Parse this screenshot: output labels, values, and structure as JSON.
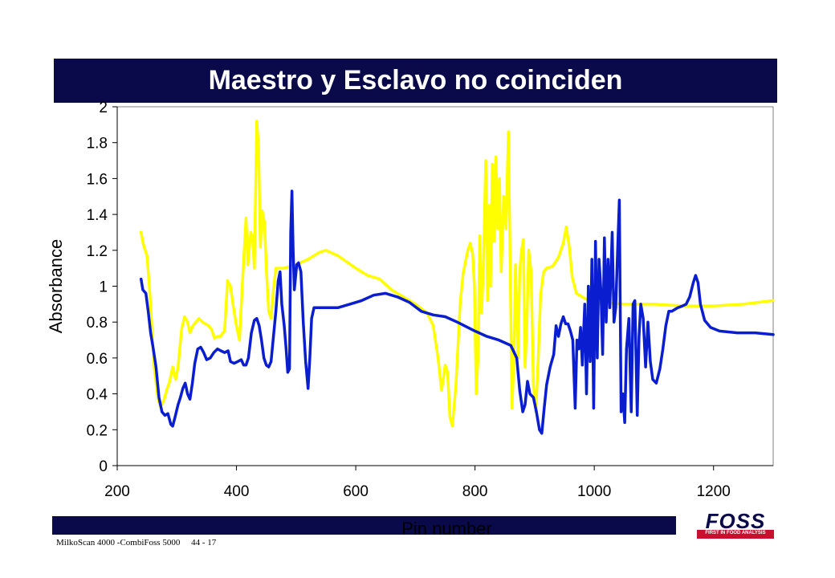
{
  "slide": {
    "title": "Maestro y Esclavo no coinciden",
    "footer": "MilkoScan 4000 -CombiFoss 5000     44 - 17"
  },
  "logo": {
    "word": "FOSS",
    "tagline": "FIRST IN FOOD ANALYSIS",
    "color": "#0a0a4a",
    "strip_color": "#c8102e"
  },
  "chart_data": {
    "type": "line",
    "xlabel": "Pin number",
    "ylabel": "Absorbance",
    "xlim": [
      200,
      1300
    ],
    "ylim": [
      0,
      2
    ],
    "xticks": [
      200,
      400,
      600,
      800,
      1000,
      1200
    ],
    "yticks": [
      0,
      0.2,
      0.4,
      0.6,
      0.8,
      1,
      1.2,
      1.4,
      1.6,
      1.8,
      2
    ],
    "grid": false,
    "legend": "none",
    "series": [
      {
        "color": "#ffff00",
        "points": [
          [
            240,
            1.3
          ],
          [
            244,
            1.23
          ],
          [
            250,
            1.17
          ],
          [
            255,
            0.95
          ],
          [
            262,
            0.55
          ],
          [
            268,
            0.38
          ],
          [
            272,
            0.33
          ],
          [
            278,
            0.36
          ],
          [
            283,
            0.42
          ],
          [
            288,
            0.47
          ],
          [
            293,
            0.55
          ],
          [
            298,
            0.48
          ],
          [
            302,
            0.55
          ],
          [
            308,
            0.76
          ],
          [
            313,
            0.83
          ],
          [
            318,
            0.8
          ],
          [
            322,
            0.74
          ],
          [
            327,
            0.78
          ],
          [
            332,
            0.8
          ],
          [
            337,
            0.82
          ],
          [
            343,
            0.8
          ],
          [
            348,
            0.79
          ],
          [
            353,
            0.78
          ],
          [
            358,
            0.76
          ],
          [
            363,
            0.71
          ],
          [
            368,
            0.72
          ],
          [
            373,
            0.72
          ],
          [
            377,
            0.74
          ],
          [
            380,
            0.75
          ],
          [
            385,
            1.03
          ],
          [
            390,
            1.0
          ],
          [
            395,
            0.88
          ],
          [
            400,
            0.78
          ],
          [
            405,
            0.7
          ],
          [
            410,
            1.02
          ],
          [
            416,
            1.38
          ],
          [
            419,
            1.12
          ],
          [
            424,
            1.3
          ],
          [
            427,
            1.27
          ],
          [
            430,
            1.1
          ],
          [
            434,
            1.92
          ],
          [
            437,
            1.78
          ],
          [
            440,
            1.22
          ],
          [
            443,
            1.42
          ],
          [
            447,
            1.35
          ],
          [
            450,
            1.1
          ],
          [
            454,
            0.86
          ],
          [
            458,
            0.82
          ],
          [
            462,
            0.98
          ],
          [
            466,
            1.1
          ],
          [
            480,
            1.1
          ],
          [
            500,
            1.12
          ],
          [
            520,
            1.15
          ],
          [
            540,
            1.19
          ],
          [
            550,
            1.2
          ],
          [
            570,
            1.17
          ],
          [
            600,
            1.1
          ],
          [
            620,
            1.06
          ],
          [
            640,
            1.04
          ],
          [
            660,
            0.98
          ],
          [
            680,
            0.94
          ],
          [
            700,
            0.9
          ],
          [
            720,
            0.85
          ],
          [
            730,
            0.78
          ],
          [
            738,
            0.6
          ],
          [
            744,
            0.42
          ],
          [
            750,
            0.56
          ],
          [
            754,
            0.52
          ],
          [
            758,
            0.27
          ],
          [
            762,
            0.22
          ],
          [
            768,
            0.45
          ],
          [
            775,
            0.9
          ],
          [
            780,
            1.07
          ],
          [
            788,
            1.2
          ],
          [
            792,
            1.24
          ],
          [
            796,
            1.18
          ],
          [
            799,
            1.0
          ],
          [
            802,
            0.4
          ],
          [
            805,
            0.6
          ],
          [
            808,
            1.28
          ],
          [
            811,
            0.85
          ],
          [
            814,
            1.1
          ],
          [
            818,
            1.7
          ],
          [
            821,
            0.92
          ],
          [
            824,
            1.45
          ],
          [
            826,
            1.0
          ],
          [
            829,
            1.68
          ],
          [
            832,
            1.25
          ],
          [
            835,
            1.72
          ],
          [
            838,
            1.32
          ],
          [
            841,
            1.6
          ],
          [
            844,
            1.08
          ],
          [
            848,
            1.5
          ],
          [
            852,
            1.32
          ],
          [
            856,
            1.86
          ],
          [
            859,
            1.1
          ],
          [
            862,
            0.32
          ],
          [
            865,
            0.58
          ],
          [
            868,
            1.12
          ],
          [
            872,
            0.6
          ],
          [
            875,
            1.08
          ],
          [
            878,
            1.2
          ],
          [
            881,
            1.26
          ],
          [
            884,
            0.55
          ],
          [
            887,
            0.8
          ],
          [
            890,
            1.2
          ],
          [
            894,
            1.08
          ],
          [
            898,
            0.45
          ],
          [
            902,
            0.3
          ],
          [
            906,
            0.6
          ],
          [
            910,
            0.95
          ],
          [
            915,
            1.08
          ],
          [
            920,
            1.1
          ],
          [
            930,
            1.11
          ],
          [
            940,
            1.16
          ],
          [
            948,
            1.24
          ],
          [
            953,
            1.33
          ],
          [
            958,
            1.22
          ],
          [
            963,
            1.05
          ],
          [
            970,
            0.96
          ],
          [
            985,
            0.93
          ],
          [
            1000,
            0.91
          ],
          [
            1050,
            0.9
          ],
          [
            1100,
            0.9
          ],
          [
            1150,
            0.89
          ],
          [
            1200,
            0.89
          ],
          [
            1250,
            0.9
          ],
          [
            1300,
            0.92
          ]
        ]
      },
      {
        "color": "#0a1ed0",
        "points": [
          [
            240,
            1.04
          ],
          [
            243,
            0.98
          ],
          [
            248,
            0.96
          ],
          [
            252,
            0.86
          ],
          [
            256,
            0.74
          ],
          [
            260,
            0.66
          ],
          [
            265,
            0.55
          ],
          [
            270,
            0.38
          ],
          [
            275,
            0.3
          ],
          [
            280,
            0.28
          ],
          [
            285,
            0.29
          ],
          [
            290,
            0.23
          ],
          [
            293,
            0.22
          ],
          [
            297,
            0.27
          ],
          [
            302,
            0.34
          ],
          [
            306,
            0.38
          ],
          [
            310,
            0.43
          ],
          [
            314,
            0.46
          ],
          [
            318,
            0.4
          ],
          [
            322,
            0.37
          ],
          [
            326,
            0.46
          ],
          [
            330,
            0.57
          ],
          [
            335,
            0.65
          ],
          [
            340,
            0.66
          ],
          [
            345,
            0.63
          ],
          [
            350,
            0.59
          ],
          [
            356,
            0.6
          ],
          [
            362,
            0.63
          ],
          [
            368,
            0.65
          ],
          [
            374,
            0.64
          ],
          [
            380,
            0.63
          ],
          [
            386,
            0.64
          ],
          [
            390,
            0.58
          ],
          [
            396,
            0.57
          ],
          [
            402,
            0.58
          ],
          [
            408,
            0.59
          ],
          [
            412,
            0.56
          ],
          [
            416,
            0.56
          ],
          [
            420,
            0.6
          ],
          [
            425,
            0.74
          ],
          [
            430,
            0.81
          ],
          [
            434,
            0.82
          ],
          [
            438,
            0.78
          ],
          [
            442,
            0.7
          ],
          [
            446,
            0.6
          ],
          [
            450,
            0.56
          ],
          [
            454,
            0.55
          ],
          [
            458,
            0.58
          ],
          [
            462,
            0.72
          ],
          [
            466,
            0.86
          ],
          [
            470,
            1.03
          ],
          [
            473,
            1.08
          ],
          [
            476,
            0.9
          ],
          [
            480,
            0.78
          ],
          [
            483,
            0.66
          ],
          [
            486,
            0.52
          ],
          [
            489,
            0.54
          ],
          [
            491,
            1.3
          ],
          [
            493,
            1.53
          ],
          [
            495,
            1.2
          ],
          [
            497,
            0.98
          ],
          [
            501,
            1.12
          ],
          [
            504,
            1.13
          ],
          [
            508,
            1.08
          ],
          [
            512,
            0.8
          ],
          [
            516,
            0.58
          ],
          [
            520,
            0.43
          ],
          [
            523,
            0.6
          ],
          [
            526,
            0.82
          ],
          [
            530,
            0.88
          ],
          [
            550,
            0.88
          ],
          [
            570,
            0.88
          ],
          [
            590,
            0.9
          ],
          [
            610,
            0.92
          ],
          [
            630,
            0.95
          ],
          [
            650,
            0.96
          ],
          [
            670,
            0.94
          ],
          [
            690,
            0.91
          ],
          [
            710,
            0.86
          ],
          [
            730,
            0.84
          ],
          [
            750,
            0.83
          ],
          [
            770,
            0.8
          ],
          [
            800,
            0.75
          ],
          [
            820,
            0.72
          ],
          [
            840,
            0.7
          ],
          [
            860,
            0.67
          ],
          [
            870,
            0.6
          ],
          [
            875,
            0.42
          ],
          [
            880,
            0.3
          ],
          [
            884,
            0.34
          ],
          [
            888,
            0.47
          ],
          [
            892,
            0.4
          ],
          [
            898,
            0.38
          ],
          [
            903,
            0.3
          ],
          [
            908,
            0.2
          ],
          [
            912,
            0.18
          ],
          [
            916,
            0.32
          ],
          [
            920,
            0.45
          ],
          [
            926,
            0.55
          ],
          [
            932,
            0.62
          ],
          [
            936,
            0.78
          ],
          [
            940,
            0.72
          ],
          [
            944,
            0.79
          ],
          [
            948,
            0.83
          ],
          [
            952,
            0.79
          ],
          [
            956,
            0.79
          ],
          [
            960,
            0.75
          ],
          [
            964,
            0.7
          ],
          [
            968,
            0.32
          ],
          [
            971,
            0.7
          ],
          [
            974,
            0.65
          ],
          [
            977,
            0.77
          ],
          [
            980,
            0.56
          ],
          [
            984,
            0.9
          ],
          [
            987,
            0.4
          ],
          [
            990,
            1.0
          ],
          [
            993,
            0.58
          ],
          [
            996,
            1.15
          ],
          [
            999,
            0.32
          ],
          [
            1002,
            1.25
          ],
          [
            1005,
            0.6
          ],
          [
            1008,
            1.15
          ],
          [
            1011,
            0.98
          ],
          [
            1014,
            0.62
          ],
          [
            1017,
            1.27
          ],
          [
            1020,
            0.8
          ],
          [
            1023,
            1.15
          ],
          [
            1026,
            0.88
          ],
          [
            1030,
            1.3
          ],
          [
            1033,
            0.8
          ],
          [
            1036,
            0.88
          ],
          [
            1039,
            1.18
          ],
          [
            1042,
            1.48
          ],
          [
            1045,
            0.3
          ],
          [
            1048,
            0.4
          ],
          [
            1051,
            0.24
          ],
          [
            1054,
            0.65
          ],
          [
            1058,
            0.82
          ],
          [
            1062,
            0.3
          ],
          [
            1065,
            0.9
          ],
          [
            1068,
            0.92
          ],
          [
            1072,
            0.28
          ],
          [
            1075,
            0.72
          ],
          [
            1078,
            0.9
          ],
          [
            1082,
            0.82
          ],
          [
            1086,
            0.55
          ],
          [
            1090,
            0.8
          ],
          [
            1094,
            0.58
          ],
          [
            1098,
            0.48
          ],
          [
            1104,
            0.46
          ],
          [
            1110,
            0.54
          ],
          [
            1115,
            0.65
          ],
          [
            1120,
            0.78
          ],
          [
            1125,
            0.86
          ],
          [
            1130,
            0.86
          ],
          [
            1140,
            0.88
          ],
          [
            1148,
            0.89
          ],
          [
            1154,
            0.9
          ],
          [
            1160,
            0.94
          ],
          [
            1166,
            1.02
          ],
          [
            1170,
            1.06
          ],
          [
            1174,
            1.02
          ],
          [
            1178,
            0.9
          ],
          [
            1185,
            0.81
          ],
          [
            1195,
            0.77
          ],
          [
            1210,
            0.75
          ],
          [
            1240,
            0.74
          ],
          [
            1270,
            0.74
          ],
          [
            1300,
            0.73
          ]
        ]
      }
    ]
  }
}
